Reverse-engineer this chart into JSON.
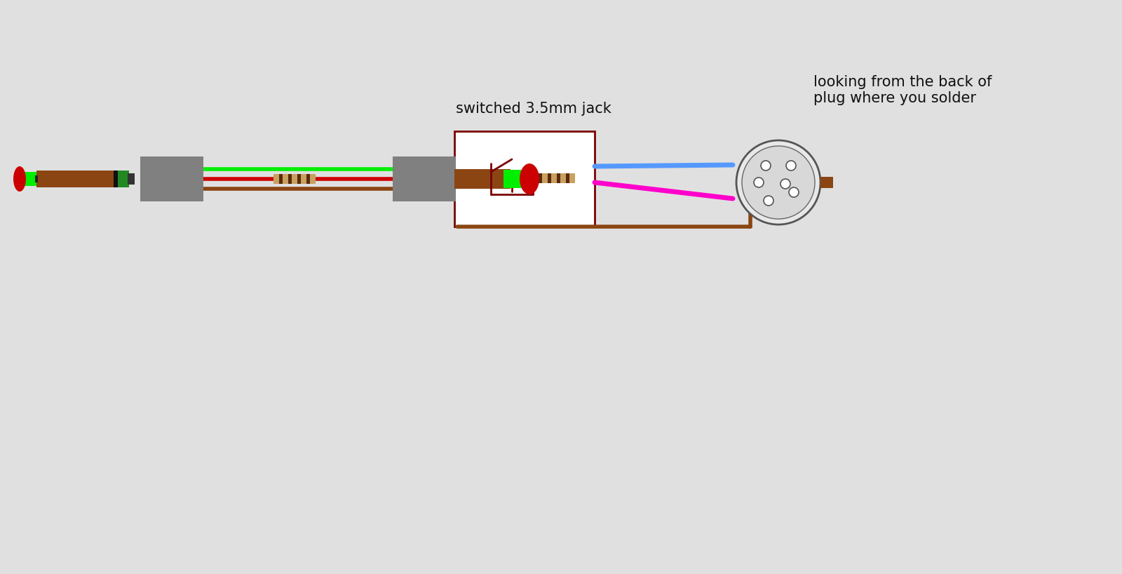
{
  "bg_color": "#e0e0e0",
  "label_switched": "switched 3.5mm jack",
  "label_looking": "looking from the back of\nplug where you solder",
  "blue_wire_color": "#5599ff",
  "magenta_wire_color": "#ff00cc",
  "green_color": "#00ee00",
  "red_color": "#cc0000",
  "brown_color": "#8B4513",
  "gray_color": "#808080",
  "dark_red_color": "#7a0000",
  "resistor_body": "#c8a060",
  "resistor_band": "#5a2a0a"
}
